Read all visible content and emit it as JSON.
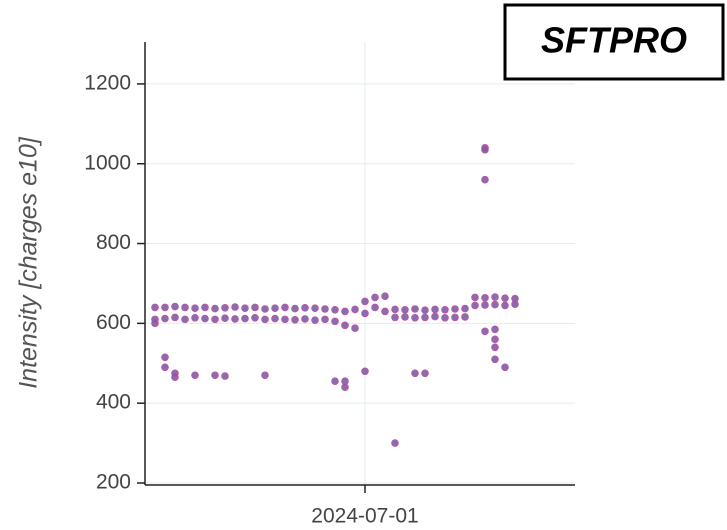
{
  "chart_data": {
    "type": "scatter",
    "title": "SFTPRO",
    "y_label": "Intensity [charges e10]",
    "color": "#7b5ea7",
    "x": [
      "2024-06-10",
      "2024-06-10",
      "2024-06-10",
      "2024-06-11",
      "2024-06-11",
      "2024-06-12",
      "2024-06-12",
      "2024-06-13",
      "2024-06-13",
      "2024-06-14",
      "2024-06-14",
      "2024-06-15",
      "2024-06-15",
      "2024-06-16",
      "2024-06-16",
      "2024-06-17",
      "2024-06-17",
      "2024-06-18",
      "2024-06-18",
      "2024-06-19",
      "2024-06-19",
      "2024-06-20",
      "2024-06-20",
      "2024-06-21",
      "2024-06-21",
      "2024-06-22",
      "2024-06-22",
      "2024-06-23",
      "2024-06-23",
      "2024-06-24",
      "2024-06-24",
      "2024-06-25",
      "2024-06-25",
      "2024-06-26",
      "2024-06-26",
      "2024-06-27",
      "2024-06-27",
      "2024-06-28",
      "2024-06-28",
      "2024-06-29",
      "2024-06-29",
      "2024-06-30",
      "2024-06-30",
      "2024-07-01",
      "2024-07-01",
      "2024-07-02",
      "2024-07-02",
      "2024-07-03",
      "2024-07-03",
      "2024-07-04",
      "2024-07-04",
      "2024-07-05",
      "2024-07-05",
      "2024-07-06",
      "2024-07-06",
      "2024-07-07",
      "2024-07-07",
      "2024-07-08",
      "2024-07-08",
      "2024-07-09",
      "2024-07-09",
      "2024-07-10",
      "2024-07-10",
      "2024-07-11",
      "2024-07-11",
      "2024-07-12",
      "2024-07-12",
      "2024-07-13",
      "2024-07-13",
      "2024-07-14",
      "2024-07-14",
      "2024-07-15",
      "2024-07-15",
      "2024-07-16",
      "2024-07-16",
      "2024-06-11",
      "2024-06-11",
      "2024-06-12",
      "2024-06-12",
      "2024-06-14",
      "2024-06-16",
      "2024-06-17",
      "2024-06-21",
      "2024-06-28",
      "2024-06-29",
      "2024-06-29",
      "2024-07-01",
      "2024-07-04",
      "2024-07-06",
      "2024-07-07",
      "2024-07-13",
      "2024-07-13",
      "2024-07-13",
      "2024-07-13",
      "2024-07-14",
      "2024-07-14",
      "2024-07-14",
      "2024-07-14",
      "2024-07-15"
    ],
    "values": [
      640,
      600,
      610,
      640,
      612,
      642,
      615,
      640,
      610,
      638,
      614,
      640,
      612,
      637,
      610,
      639,
      613,
      641,
      611,
      638,
      612,
      640,
      614,
      636,
      610,
      638,
      612,
      640,
      610,
      637,
      609,
      639,
      611,
      638,
      608,
      636,
      610,
      634,
      605,
      630,
      595,
      635,
      588,
      655,
      625,
      665,
      640,
      668,
      630,
      635,
      615,
      634,
      616,
      636,
      614,
      633,
      615,
      635,
      617,
      634,
      614,
      636,
      615,
      637,
      616,
      665,
      645,
      664,
      646,
      666,
      647,
      663,
      645,
      662,
      648,
      515,
      490,
      465,
      475,
      470,
      470,
      468,
      470,
      455,
      455,
      440,
      480,
      300,
      475,
      475,
      1040,
      1035,
      960,
      580,
      585,
      560,
      540,
      510,
      490
    ],
    "xlim": [
      "2024-06-09",
      "2024-07-22"
    ],
    "xticks": [
      "2024-07-01"
    ],
    "ylim": [
      195,
      1305
    ],
    "yticks": [
      200,
      400,
      600,
      800,
      1000,
      1200
    ],
    "grid": true
  }
}
